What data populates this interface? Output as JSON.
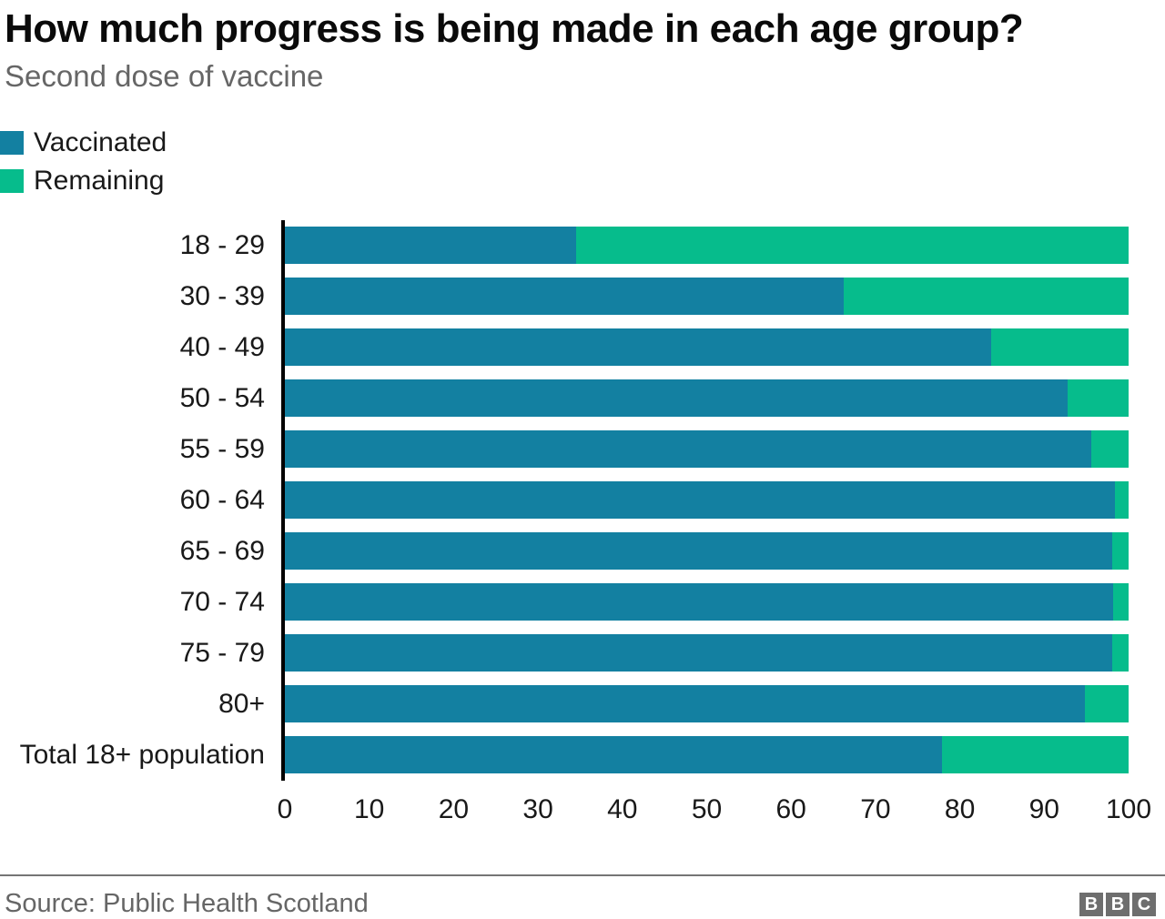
{
  "header": {
    "title": "How much progress is being made in each age group?",
    "subtitle": "Second dose of vaccine"
  },
  "legend": [
    {
      "label": "Vaccinated",
      "color": "#1380A1"
    },
    {
      "label": "Remaining",
      "color": "#06BC8C"
    }
  ],
  "chart_data": {
    "type": "bar",
    "orientation": "horizontal",
    "stacked": true,
    "title": "How much progress is being made in each age group?",
    "subtitle": "Second dose of vaccine",
    "xlabel": "",
    "ylabel": "",
    "xlim": [
      0,
      100
    ],
    "xticks": [
      0,
      10,
      20,
      30,
      40,
      50,
      60,
      70,
      80,
      90,
      100
    ],
    "grid": false,
    "legend_position": "top-left",
    "categories": [
      "18 - 29",
      "30 - 39",
      "40 - 49",
      "50 - 54",
      "55 - 59",
      "60 - 64",
      "65 - 69",
      "70 - 74",
      "75 - 79",
      "80+",
      "Total 18+ population"
    ],
    "series": [
      {
        "name": "Vaccinated",
        "color": "#1380A1",
        "values": [
          34.5,
          66.2,
          83.7,
          92.8,
          95.6,
          98.4,
          98.1,
          98.2,
          98.1,
          94.8,
          77.9
        ]
      },
      {
        "name": "Remaining",
        "color": "#06BC8C",
        "values": [
          65.5,
          33.8,
          16.3,
          7.2,
          4.4,
          1.6,
          1.9,
          1.8,
          1.9,
          5.2,
          22.1
        ]
      }
    ]
  },
  "footer": {
    "source": "Source: Public Health Scotland",
    "logo_letters": [
      "B",
      "B",
      "C"
    ]
  }
}
